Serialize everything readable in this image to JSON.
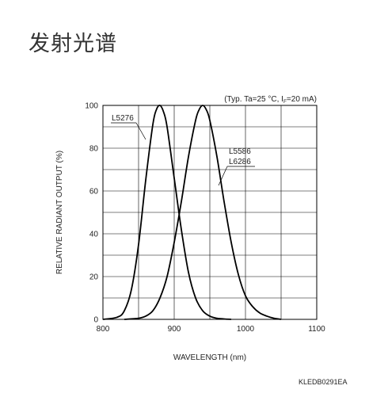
{
  "header": {
    "title": "发射光谱"
  },
  "footer": {
    "code": "KLEDB0291EA"
  },
  "chart_data": {
    "type": "line",
    "title": "",
    "note": "(Typ. Ta=25 °C, Iₒ=20 mA)",
    "note_text": "(Typ. Ta=25 °C, I",
    "note_sub": "F",
    "note_tail": "=20 mA)",
    "xlabel": "WAVELENGTH (nm)",
    "ylabel": "RELATIVE RADIANT OUTPUT (%)",
    "xlim": [
      800,
      1100
    ],
    "ylim": [
      0,
      100
    ],
    "xticks": [
      800,
      900,
      1000,
      1100
    ],
    "yticks": [
      0,
      20,
      40,
      60,
      80,
      100
    ],
    "grid": true,
    "series": [
      {
        "name": "L5276",
        "x": [
          800,
          820,
          830,
          840,
          850,
          860,
          870,
          875,
          880,
          885,
          890,
          900,
          910,
          920,
          930,
          940,
          950,
          960,
          970,
          980
        ],
        "y": [
          0,
          1,
          4,
          14,
          35,
          65,
          91,
          98,
          100,
          97,
          90,
          66,
          42,
          22,
          10,
          4,
          1.5,
          0.5,
          0.2,
          0
        ]
      },
      {
        "name": "L5586\nL6286",
        "labels": [
          "L5586",
          "L6286"
        ],
        "x": [
          830,
          850,
          860,
          870,
          880,
          890,
          900,
          910,
          920,
          930,
          935,
          940,
          945,
          950,
          960,
          970,
          980,
          990,
          1000,
          1010,
          1020,
          1030,
          1040,
          1050
        ],
        "y": [
          0,
          0.5,
          1.5,
          4,
          10,
          20,
          36,
          55,
          76,
          93,
          98,
          100,
          98,
          93,
          76,
          55,
          36,
          21,
          11,
          6,
          3,
          1.5,
          0.5,
          0
        ]
      }
    ]
  }
}
